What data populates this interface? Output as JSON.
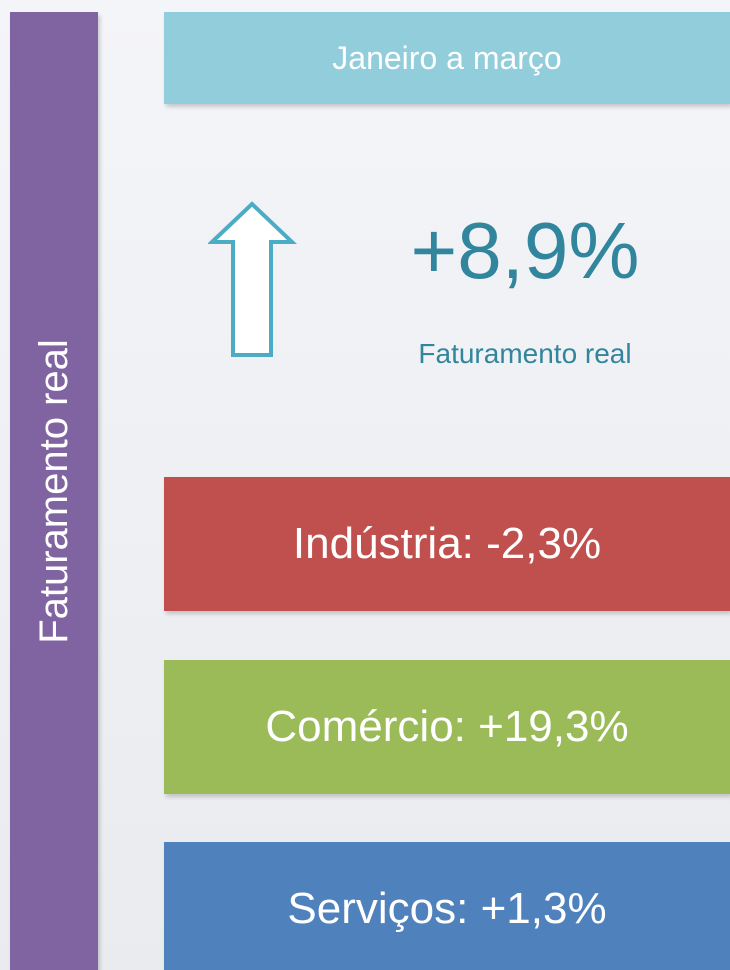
{
  "sidebar": "Faturamento real",
  "period": "Janeiro a março",
  "headline": {
    "value": "+8,9%",
    "label": "Faturamento real"
  },
  "sectors": [
    "Indústria: -2,3%",
    "Comércio: +19,3%",
    "Serviços: +1,3%"
  ]
}
